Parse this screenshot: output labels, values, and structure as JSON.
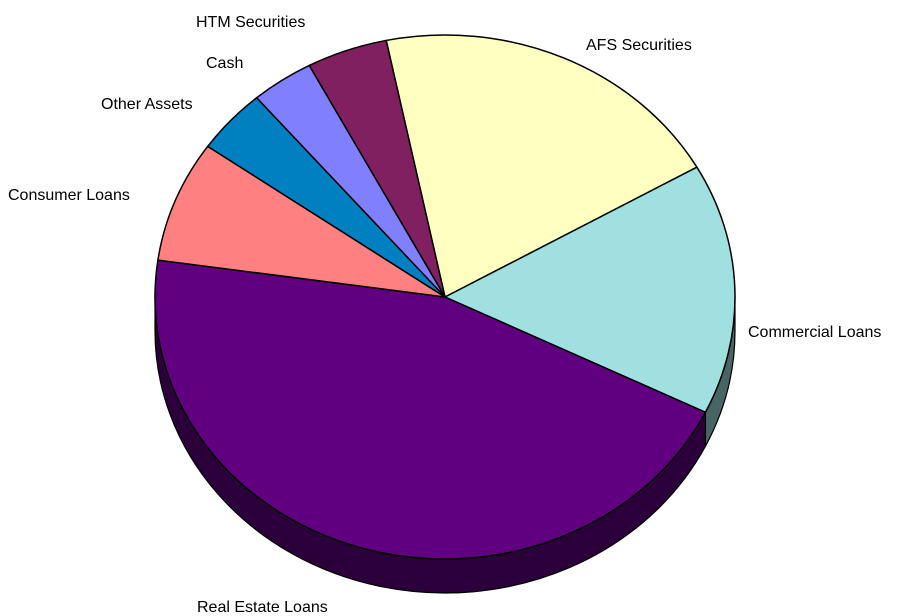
{
  "chart_data": {
    "type": "pie",
    "title": "",
    "three_d": true,
    "slices": [
      {
        "label": "AFS Securities",
        "value": 20.0,
        "color": "#FFFFC0"
      },
      {
        "label": "Commercial Loans",
        "value": 15.5,
        "color": "#A0E0E0"
      },
      {
        "label": "Real Estate Loans",
        "value": 45.0,
        "color": "#600080"
      },
      {
        "label": "Consumer Loans",
        "value": 7.5,
        "color": "#FF8080"
      },
      {
        "label": "Other Assets",
        "value": 4.0,
        "color": "#0080C0"
      },
      {
        "label": "Cash",
        "value": 3.5,
        "color": "#8080FF"
      },
      {
        "label": "HTM Securities",
        "value": 4.5,
        "color": "#802060"
      }
    ]
  }
}
